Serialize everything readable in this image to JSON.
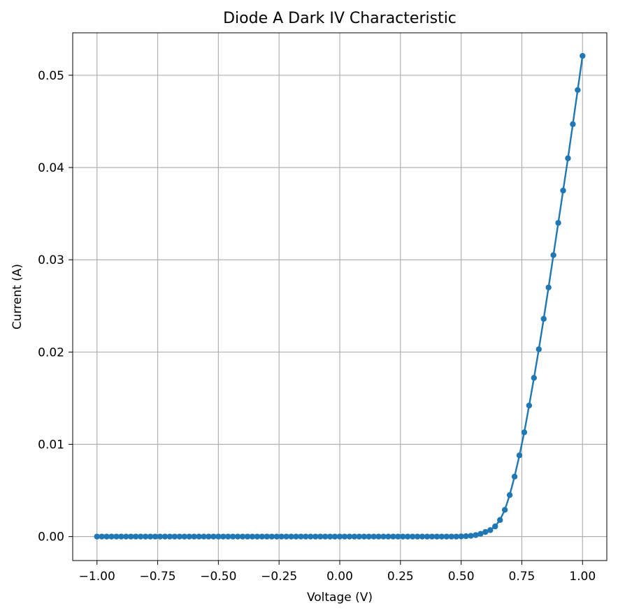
{
  "chart_data": {
    "type": "line",
    "title": "Diode A Dark IV Characteristic",
    "xlabel": "Voltage (V)",
    "ylabel": "Current (A)",
    "xlim": [
      -1.1,
      1.1
    ],
    "ylim": [
      -0.0026,
      0.0546
    ],
    "xticks": [
      -1.0,
      -0.75,
      -0.5,
      -0.25,
      0.0,
      0.25,
      0.5,
      0.75,
      1.0
    ],
    "xtick_labels": [
      "−1.00",
      "−0.75",
      "−0.50",
      "−0.25",
      "0.00",
      "0.25",
      "0.50",
      "0.75",
      "1.00"
    ],
    "yticks": [
      0.0,
      0.01,
      0.02,
      0.03,
      0.04,
      0.05
    ],
    "ytick_labels": [
      "0.00",
      "0.01",
      "0.02",
      "0.03",
      "0.04",
      "0.05"
    ],
    "grid": true,
    "marker": "circle",
    "line_color": "#1f77b4",
    "grid_color": "#b0b0b0",
    "series": [
      {
        "x": [
          -1.0,
          -0.98,
          -0.96,
          -0.94,
          -0.92,
          -0.9,
          -0.88,
          -0.86,
          -0.84,
          -0.82,
          -0.8,
          -0.78,
          -0.76,
          -0.74,
          -0.72,
          -0.7,
          -0.68,
          -0.66,
          -0.64,
          -0.62,
          -0.6,
          -0.58,
          -0.56,
          -0.54,
          -0.52,
          -0.5,
          -0.48,
          -0.46,
          -0.44,
          -0.42,
          -0.4,
          -0.38,
          -0.36,
          -0.34,
          -0.32,
          -0.3,
          -0.28,
          -0.26,
          -0.24,
          -0.22,
          -0.2,
          -0.18,
          -0.16,
          -0.14,
          -0.12,
          -0.1,
          -0.08,
          -0.06,
          -0.04,
          -0.02,
          0.0,
          0.02,
          0.04,
          0.06,
          0.08,
          0.1,
          0.12,
          0.14,
          0.16,
          0.18,
          0.2,
          0.22,
          0.24,
          0.26,
          0.28,
          0.3,
          0.32,
          0.34,
          0.36,
          0.38,
          0.4,
          0.42,
          0.44,
          0.46,
          0.48,
          0.5,
          0.52,
          0.54,
          0.56,
          0.58,
          0.6,
          0.62,
          0.64,
          0.66,
          0.68,
          0.7,
          0.72,
          0.74,
          0.76,
          0.78,
          0.8,
          0.82,
          0.84,
          0.86,
          0.88,
          0.9,
          0.92,
          0.94,
          0.96,
          0.98,
          1.0
        ],
        "y": [
          0.0,
          0.0,
          0.0,
          0.0,
          0.0,
          0.0,
          0.0,
          0.0,
          0.0,
          0.0,
          0.0,
          0.0,
          0.0,
          0.0,
          0.0,
          0.0,
          0.0,
          0.0,
          0.0,
          0.0,
          0.0,
          0.0,
          0.0,
          0.0,
          0.0,
          0.0,
          0.0,
          0.0,
          0.0,
          0.0,
          0.0,
          0.0,
          0.0,
          0.0,
          0.0,
          0.0,
          0.0,
          0.0,
          0.0,
          0.0,
          0.0,
          0.0,
          0.0,
          0.0,
          0.0,
          0.0,
          0.0,
          0.0,
          0.0,
          0.0,
          0.0,
          0.0,
          0.0,
          0.0,
          0.0,
          0.0,
          0.0,
          0.0,
          0.0,
          0.0,
          0.0,
          0.0,
          0.0,
          0.0,
          0.0,
          0.0,
          0.0,
          0.0,
          0.0,
          0.0,
          0.0,
          0.0,
          0.0,
          0.0,
          0.0,
          2e-05,
          4e-05,
          8e-05,
          0.00016,
          0.0003,
          0.0005,
          0.0007,
          0.0011,
          0.0018,
          0.0029,
          0.0045,
          0.0065,
          0.0088,
          0.0113,
          0.0142,
          0.0172,
          0.0203,
          0.0236,
          0.027,
          0.0305,
          0.034,
          0.0375,
          0.041,
          0.0447,
          0.0484,
          0.0521
        ]
      }
    ]
  }
}
